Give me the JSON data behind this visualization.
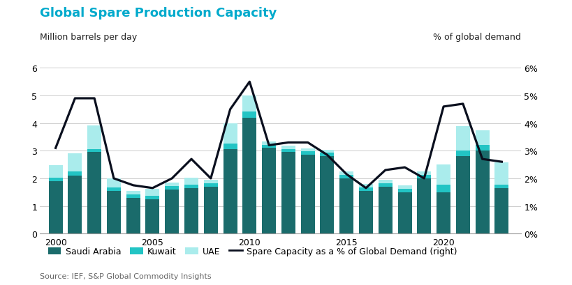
{
  "title": "Global Spare Production Capacity",
  "ylabel_left": "Million barrels per day",
  "ylabel_right": "% of global demand",
  "source": "Source: IEF, S&P Global Commodity Insights",
  "years": [
    2000,
    2001,
    2002,
    2003,
    2004,
    2005,
    2006,
    2007,
    2008,
    2009,
    2010,
    2011,
    2012,
    2013,
    2014,
    2015,
    2016,
    2017,
    2018,
    2019,
    2020,
    2021,
    2022,
    2023
  ],
  "saudi_arabia": [
    1.9,
    2.1,
    2.95,
    1.55,
    1.3,
    1.25,
    1.6,
    1.65,
    1.7,
    3.05,
    4.2,
    3.1,
    2.95,
    2.85,
    2.8,
    2.0,
    1.55,
    1.7,
    1.5,
    2.0,
    1.5,
    2.8,
    3.0,
    1.65
  ],
  "kuwait": [
    0.12,
    0.15,
    0.12,
    0.12,
    0.12,
    0.12,
    0.12,
    0.12,
    0.12,
    0.2,
    0.22,
    0.12,
    0.12,
    0.12,
    0.12,
    0.12,
    0.12,
    0.12,
    0.12,
    0.12,
    0.28,
    0.22,
    0.22,
    0.12
  ],
  "uae": [
    0.45,
    0.65,
    0.85,
    0.32,
    0.12,
    0.25,
    0.12,
    0.25,
    0.12,
    0.75,
    0.58,
    0.12,
    0.12,
    0.12,
    0.12,
    0.12,
    0.12,
    0.12,
    0.12,
    0.12,
    0.72,
    0.88,
    0.52,
    0.82
  ],
  "spare_capacity_pct": [
    3.1,
    4.9,
    4.9,
    2.0,
    1.75,
    1.65,
    2.0,
    2.7,
    2.0,
    4.5,
    5.5,
    3.2,
    3.3,
    3.3,
    2.85,
    2.15,
    1.65,
    2.3,
    2.4,
    2.0,
    4.6,
    4.7,
    2.7,
    2.6
  ],
  "color_saudi": "#1a6b6b",
  "color_kuwait": "#22c4c4",
  "color_uae": "#aaecec",
  "color_line": "#0a0f1e",
  "ylim_left": [
    0,
    6
  ],
  "ylim_right": [
    0,
    6
  ],
  "yticks_left": [
    0,
    1,
    2,
    3,
    4,
    5,
    6
  ],
  "yticks_right": [
    "0%",
    "1%",
    "2%",
    "3%",
    "4%",
    "5%",
    "6%"
  ],
  "background_color": "#ffffff",
  "grid_color": "#cccccc",
  "title_color": "#00aacc",
  "title_fontsize": 13,
  "label_fontsize": 9,
  "tick_fontsize": 9,
  "source_fontsize": 8,
  "legend_fontsize": 9
}
